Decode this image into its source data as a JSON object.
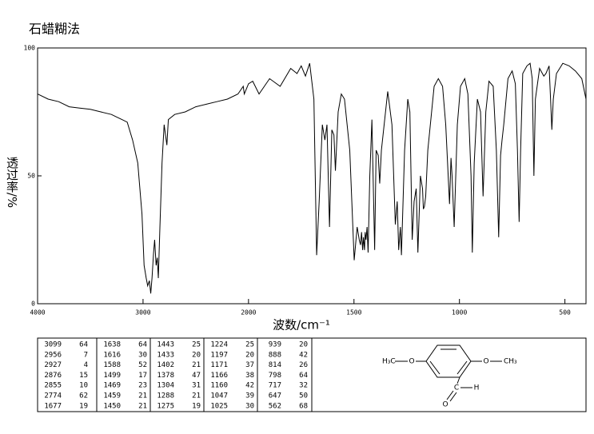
{
  "chart_data": {
    "type": "line",
    "title": "石蜡糊法",
    "ylabel": "透过率/%",
    "xlabel": "波数/cm⁻¹",
    "xlim": [
      4000,
      400
    ],
    "xticks": [
      4000,
      3000,
      2000,
      1500,
      1000,
      500
    ],
    "ylim": [
      0,
      100
    ],
    "yticks": [
      0,
      50,
      100
    ],
    "x": [
      4000,
      3900,
      3800,
      3700,
      3600,
      3500,
      3400,
      3300,
      3250,
      3200,
      3150,
      3099,
      3050,
      3010,
      2990,
      2970,
      2956,
      2940,
      2927,
      2915,
      2900,
      2890,
      2876,
      2865,
      2855,
      2840,
      2820,
      2800,
      2774,
      2760,
      2700,
      2600,
      2500,
      2400,
      2300,
      2200,
      2100,
      2050,
      2040,
      2000,
      1980,
      1950,
      1900,
      1850,
      1800,
      1770,
      1750,
      1730,
      1710,
      1690,
      1677,
      1665,
      1650,
      1638,
      1628,
      1616,
      1605,
      1595,
      1588,
      1575,
      1560,
      1545,
      1520,
      1499,
      1485,
      1475,
      1469,
      1464,
      1459,
      1455,
      1450,
      1447,
      1443,
      1438,
      1433,
      1425,
      1415,
      1402,
      1395,
      1385,
      1378,
      1370,
      1340,
      1320,
      1304,
      1295,
      1288,
      1280,
      1275,
      1260,
      1245,
      1235,
      1224,
      1215,
      1205,
      1197,
      1185,
      1175,
      1171,
      1166,
      1160,
      1150,
      1120,
      1100,
      1080,
      1065,
      1047,
      1040,
      1035,
      1025,
      1010,
      995,
      975,
      960,
      945,
      939,
      930,
      915,
      900,
      888,
      875,
      860,
      840,
      825,
      814,
      805,
      798,
      790,
      770,
      750,
      735,
      725,
      717,
      710,
      700,
      680,
      665,
      655,
      647,
      640,
      620,
      600,
      590,
      575,
      568,
      562,
      555,
      540,
      510,
      480,
      450,
      420,
      400
    ],
    "series": [
      {
        "color": "#000000",
        "values": [
          82,
          80,
          79,
          77,
          76.5,
          76,
          75,
          74,
          73,
          72,
          71,
          64,
          55,
          35,
          15,
          10,
          7,
          9,
          4,
          10,
          20,
          25,
          15,
          18,
          10,
          30,
          55,
          70,
          62,
          72,
          74,
          75,
          77,
          78,
          79,
          80,
          82,
          85,
          82,
          86,
          87,
          82,
          88,
          85,
          92,
          90,
          93,
          89,
          94,
          80,
          19,
          40,
          70,
          64,
          70,
          30,
          68,
          66,
          52,
          75,
          82,
          80,
          60,
          17,
          30,
          25,
          23,
          28,
          21,
          26,
          21,
          28,
          25,
          30,
          20,
          50,
          72,
          21,
          60,
          58,
          47,
          60,
          83,
          70,
          31,
          40,
          21,
          30,
          19,
          60,
          80,
          75,
          25,
          40,
          45,
          20,
          50,
          45,
          37,
          38,
          42,
          60,
          85,
          88,
          85,
          70,
          39,
          57,
          50,
          30,
          70,
          85,
          88,
          82,
          50,
          20,
          55,
          80,
          75,
          42,
          75,
          87,
          85,
          60,
          26,
          58,
          64,
          70,
          88,
          91,
          86,
          60,
          32,
          60,
          90,
          93,
          94,
          88,
          50,
          80,
          92,
          89,
          90,
          93,
          80,
          68,
          80,
          90,
          94,
          93,
          91,
          88,
          80
        ]
      }
    ]
  },
  "peak_table": {
    "rows": [
      [
        3099,
        64,
        1638,
        64,
        1443,
        25,
        1224,
        25,
        939,
        20
      ],
      [
        2956,
        7,
        1616,
        30,
        1433,
        20,
        1197,
        20,
        888,
        42
      ],
      [
        2927,
        4,
        1588,
        52,
        1402,
        21,
        1171,
        37,
        814,
        26
      ],
      [
        2876,
        15,
        1499,
        17,
        1378,
        47,
        1166,
        38,
        798,
        64
      ],
      [
        2855,
        10,
        1469,
        23,
        1304,
        31,
        1160,
        42,
        717,
        32
      ],
      [
        2774,
        62,
        1459,
        21,
        1288,
        21,
        1047,
        39,
        647,
        50
      ],
      [
        1677,
        19,
        1450,
        21,
        1275,
        19,
        1025,
        30,
        562,
        68
      ]
    ]
  },
  "structure": {
    "labels": [
      "H₃C",
      "O",
      "O",
      "CH₃",
      "C",
      "H",
      "O"
    ]
  }
}
